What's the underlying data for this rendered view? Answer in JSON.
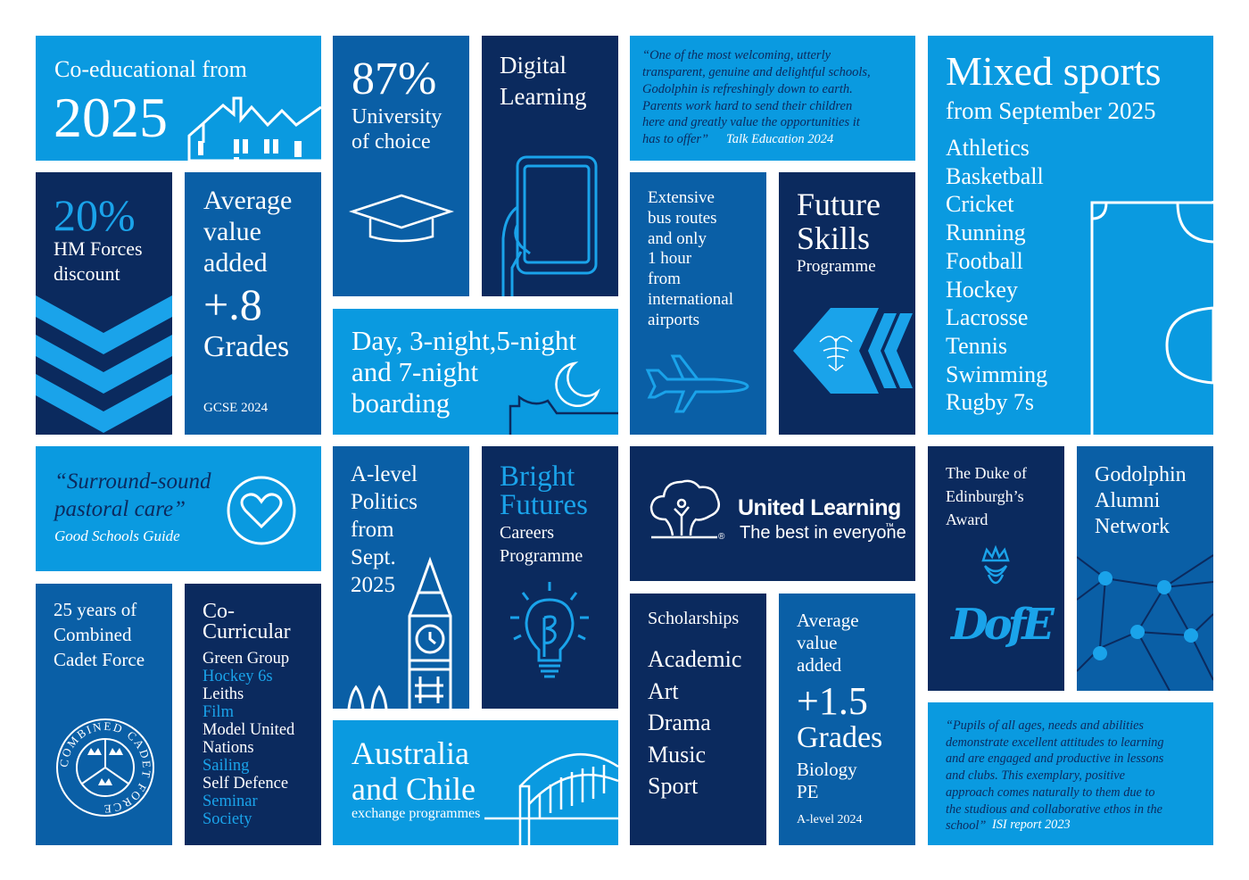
{
  "colors": {
    "light_blue": "#0a9ae0",
    "mid_blue": "#0a5fa6",
    "dark_blue": "#0b2a5e",
    "cyan_text": "#1aa3ea",
    "white": "#ffffff"
  },
  "coed": {
    "line1": "Co-educational from",
    "year": "2025",
    "icon": "house-icon"
  },
  "university": {
    "percent": "87%",
    "label": "University\nof choice",
    "icon": "graduation-cap-icon"
  },
  "digital": {
    "title": "Digital\nLearning",
    "icon": "tablet-icon"
  },
  "quote_talk": {
    "text": "“One of the most welcoming, utterly\ntransparent, genuine and delightful schools,\nGodolphin is refreshingly down to earth.\nParents work hard to send their children\nhere and greatly value the opportunities it\nhas to offer”",
    "source": "Talk Education 2024"
  },
  "sports": {
    "title": "Mixed sports",
    "subtitle": "from September 2025",
    "items": [
      "Athletics",
      "Basketball",
      "Cricket",
      "Running",
      "Football",
      "Hockey",
      "Lacrosse",
      "Tennis",
      "Swimming",
      "Rugby 7s"
    ],
    "icon": "sports-pitch-icon"
  },
  "forces": {
    "percent": "20%",
    "label": "HM Forces\ndiscount",
    "icon": "chevron-rank-icon"
  },
  "gcse": {
    "line1": "Average\nvalue\nadded",
    "value": "+.8",
    "unit": "Grades",
    "note": "GCSE 2024"
  },
  "boarding": {
    "text": "Day, 3-night,5-night\nand 7-night\nboarding",
    "icon": "moon-icon"
  },
  "bus": {
    "text": "Extensive\nbus routes\nand only\n1 hour\nfrom\ninternational\nairports",
    "icon": "airplane-icon"
  },
  "future": {
    "title": "Future\nSkills",
    "subtitle": "Programme",
    "icon": "eagle-crest-icon"
  },
  "pastoral": {
    "quote": "“Surround-sound\npastoral care”",
    "source": "Good Schools Guide",
    "icon": "heart-icon"
  },
  "politics": {
    "text": "A-level\nPolitics\nfrom\nSept.\n2025",
    "icon": "big-ben-icon"
  },
  "bright": {
    "title": "Bright\nFutures",
    "subtitle": "Careers\nProgramme",
    "icon": "lightbulb-icon"
  },
  "united": {
    "name": "United Learning",
    "tagline": "The best in everyone",
    "tm": "™",
    "reg": "®",
    "icon": "tree-logo-icon"
  },
  "dofe": {
    "title": "The Duke of\nEdinburgh’s\nAward",
    "logo": "DofE",
    "icon": "dofe-crown-icon"
  },
  "alumni": {
    "title": "Godolphin\nAlumni\nNetwork",
    "icon": "network-icon"
  },
  "cadet": {
    "title": "25 years of\nCombined\nCadet Force",
    "seal_text": "COMBINED CADET FORCE",
    "icon": "ccf-badge-icon"
  },
  "cocurricular": {
    "title": "Co-\nCurricular",
    "items": [
      {
        "text": "Green Group",
        "color": "#ffffff"
      },
      {
        "text": "Hockey 6s",
        "color": "#1aa3ea"
      },
      {
        "text": "Leiths",
        "color": "#ffffff"
      },
      {
        "text": "Film",
        "color": "#1aa3ea"
      },
      {
        "text": "Model United",
        "color": "#ffffff"
      },
      {
        "text": "Nations",
        "color": "#ffffff"
      },
      {
        "text": "Sailing",
        "color": "#1aa3ea"
      },
      {
        "text": "Self Defence",
        "color": "#ffffff"
      },
      {
        "text": "Seminar",
        "color": "#1aa3ea"
      },
      {
        "text": "Society",
        "color": "#1aa3ea"
      }
    ]
  },
  "exchange": {
    "title": "Australia\nand Chile",
    "subtitle": "exchange programmes",
    "icon": "harbour-bridge-icon"
  },
  "scholarships": {
    "title": "Scholarships",
    "items": [
      "Academic",
      "Art",
      "Drama",
      "Music",
      "Sport"
    ]
  },
  "alevel": {
    "line1": "Average\nvalue\nadded",
    "value": "+1.5",
    "unit": "Grades",
    "subjects": "Biology\nPE",
    "note": "A-level 2024"
  },
  "quote_isi": {
    "text": "“Pupils of all ages, needs and abilities\ndemonstrate excellent attitudes to learning\nand are engaged and productive in lessons\nand clubs. This exemplary, positive\napproach comes naturally to them due to\nthe studious and collaborative ethos in the\nschool”",
    "source": "ISI report 2023"
  }
}
